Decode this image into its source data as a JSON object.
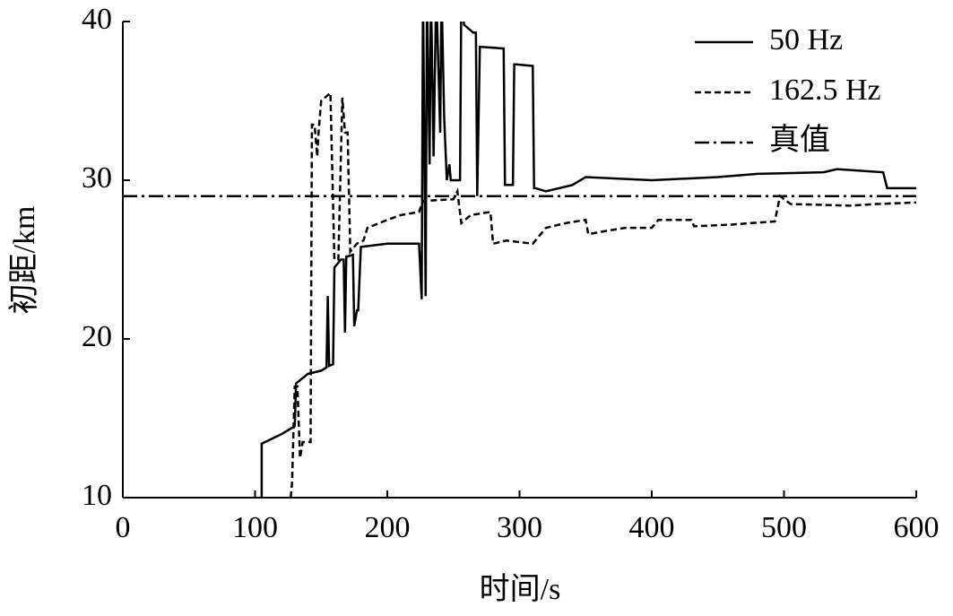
{
  "chart_data": {
    "type": "line",
    "xlabel": "时间/s",
    "ylabel": "初距/km",
    "xlim": [
      0,
      600
    ],
    "xticks": [
      0,
      100,
      200,
      300,
      400,
      500,
      600
    ],
    "ylim": [
      10,
      40
    ],
    "yticks": [
      10,
      20,
      30,
      40
    ],
    "legend": "upper right",
    "series": [
      {
        "name": "50 Hz",
        "color": "#000000",
        "dash": "solid",
        "x": [
          105,
          105,
          120,
          130,
          131,
          140,
          150,
          154,
          155,
          156,
          159,
          160,
          165,
          167,
          168,
          169,
          170,
          174,
          175,
          177,
          178,
          180,
          200,
          224,
          226,
          227,
          229,
          230,
          232,
          233,
          235,
          237,
          240,
          241,
          243,
          245,
          247,
          248,
          255,
          256,
          257,
          258,
          265,
          267,
          268,
          270,
          272,
          288,
          289,
          290,
          295,
          296,
          297,
          310,
          311,
          312,
          320,
          340,
          350,
          400,
          450,
          480,
          530,
          540,
          575,
          578,
          600
        ],
        "values": [
          10,
          13.4,
          14,
          14.5,
          17.2,
          17.8,
          18,
          18.2,
          22.7,
          18.3,
          18.4,
          24.5,
          25,
          25,
          20.4,
          25.2,
          25.2,
          25.3,
          20.8,
          21.8,
          21.8,
          25.8,
          26,
          26,
          22.5,
          42,
          22.7,
          42,
          31,
          42,
          31.5,
          42,
          33,
          42,
          34,
          30,
          31,
          30,
          30,
          42,
          42,
          39.8,
          39.3,
          39.3,
          29,
          38.4,
          38.4,
          38.3,
          29.7,
          29.7,
          29.7,
          37.3,
          37.3,
          37.2,
          29.5,
          29.5,
          29.3,
          29.7,
          30.2,
          30,
          30.2,
          30.4,
          30.5,
          30.7,
          30.5,
          29.5,
          29.5
        ]
      },
      {
        "name": "162.5 Hz",
        "color": "#000000",
        "dash": "dashed",
        "x": [
          127,
          128,
          130,
          132,
          134,
          136,
          138,
          142,
          143,
          145,
          147,
          148,
          150,
          157,
          160,
          163,
          166,
          168,
          170,
          172,
          177,
          182,
          185,
          200,
          210,
          224,
          227,
          250,
          253,
          256,
          263,
          278,
          280,
          290,
          310,
          315,
          320,
          335,
          350,
          352,
          365,
          380,
          400,
          405,
          430,
          432,
          460,
          475,
          493,
          497,
          505,
          550,
          570,
          600
        ],
        "values": [
          10,
          11,
          17,
          17,
          12.5,
          13.5,
          13.5,
          13.5,
          33.5,
          33.5,
          31.5,
          33,
          35,
          35.5,
          25,
          25,
          35.2,
          33,
          33,
          25.5,
          26,
          26.2,
          27,
          27.5,
          27.8,
          28,
          28.7,
          28.8,
          29.3,
          27.3,
          27.8,
          28,
          26,
          26.2,
          26,
          26.5,
          27,
          27.3,
          27.5,
          26.6,
          26.8,
          27,
          27,
          27.5,
          27.5,
          27.1,
          27.2,
          27.3,
          27.4,
          29,
          28.5,
          28.4,
          28.5,
          28.6
        ]
      },
      {
        "name": "真值",
        "color": "#000000",
        "dash": "dashdot",
        "x": [
          0,
          600
        ],
        "values": [
          29,
          29
        ]
      }
    ]
  }
}
